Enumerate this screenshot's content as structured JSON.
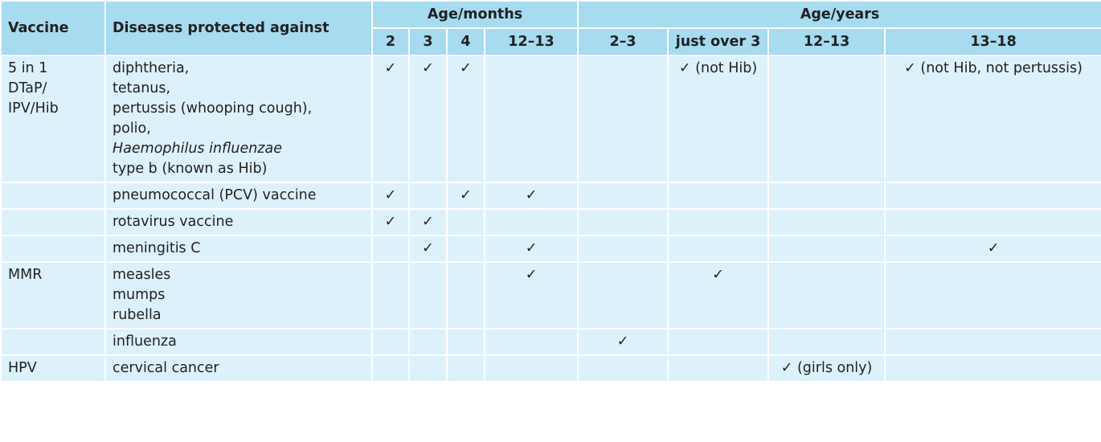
{
  "header": {
    "vaccine": "Vaccine",
    "diseases": "Diseases protected against",
    "groups": [
      {
        "label": "Age/months",
        "ages": [
          "2",
          "3",
          "4",
          "12–13"
        ]
      },
      {
        "label": "Age/years",
        "ages": [
          "2–3",
          "just over 3",
          "12–13",
          "13–18"
        ]
      }
    ]
  },
  "rows": [
    {
      "vaccine": [
        "5 in 1",
        "DTaP/",
        "IPV/Hib"
      ],
      "diseases": [
        "diphtheria,",
        "tetanus,",
        "pertussis (whooping cough),",
        "polio,",
        {
          "text": "Haemophilus influenzae",
          "italic": true
        },
        "type b (known as Hib)"
      ],
      "cells": [
        "✓",
        "✓",
        "✓",
        null,
        null,
        "✓ (not Hib)",
        null,
        "✓ (not Hib, not pertussis)"
      ]
    },
    {
      "vaccine": null,
      "diseases": [
        "pneumococcal (PCV) vaccine"
      ],
      "cells": [
        "✓",
        null,
        "✓",
        "✓",
        null,
        null,
        null,
        null
      ]
    },
    {
      "vaccine": null,
      "diseases": [
        "rotavirus vaccine"
      ],
      "cells": [
        "✓",
        "✓",
        null,
        null,
        null,
        null,
        null,
        null
      ]
    },
    {
      "vaccine": null,
      "diseases": [
        "meningitis C"
      ],
      "cells": [
        null,
        "✓",
        null,
        "✓",
        null,
        null,
        null,
        "✓"
      ]
    },
    {
      "vaccine": [
        "MMR"
      ],
      "diseases": [
        "measles",
        "mumps",
        "rubella"
      ],
      "cells": [
        null,
        null,
        null,
        "✓",
        null,
        "✓",
        null,
        null
      ]
    },
    {
      "vaccine": null,
      "diseases": [
        "influenza"
      ],
      "cells": [
        null,
        null,
        null,
        null,
        "✓",
        null,
        null,
        null
      ]
    },
    {
      "vaccine": [
        "HPV"
      ],
      "diseases": [
        "cervical cancer"
      ],
      "cells": [
        null,
        null,
        null,
        null,
        null,
        null,
        "✓ (girls only)",
        null
      ]
    }
  ]
}
